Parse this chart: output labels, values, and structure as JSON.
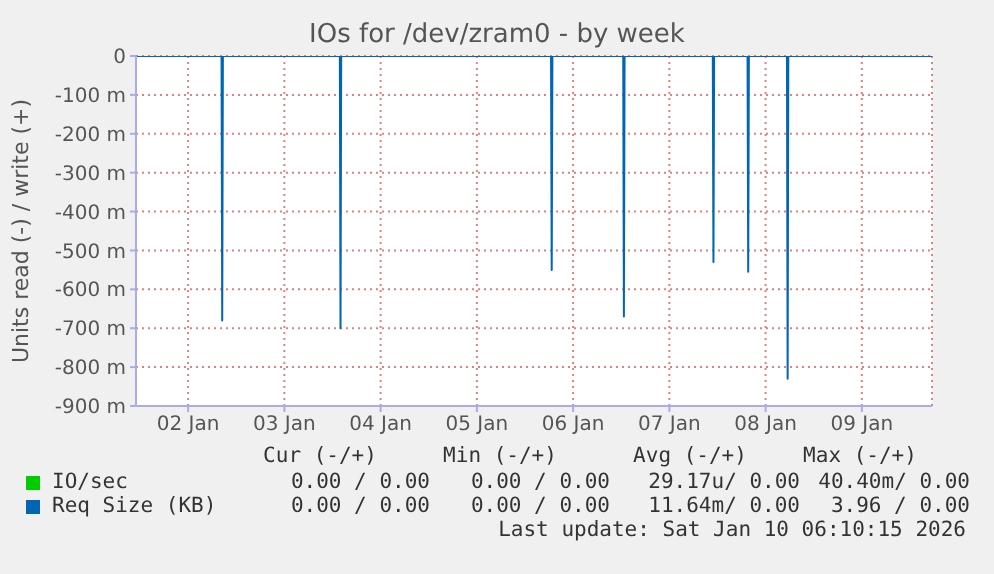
{
  "chart_data": {
    "type": "line",
    "title": "IOs for /dev/zram0 - by week",
    "ylabel": "Units read (-) / write (+)",
    "xlim": [
      "2026-01-01T11:00",
      "2026-01-09T17:30"
    ],
    "xticks": [
      {
        "value": "2026-01-02",
        "label": "02 Jan"
      },
      {
        "value": "2026-01-03",
        "label": "03 Jan"
      },
      {
        "value": "2026-01-04",
        "label": "04 Jan"
      },
      {
        "value": "2026-01-05",
        "label": "05 Jan"
      },
      {
        "value": "2026-01-06",
        "label": "06 Jan"
      },
      {
        "value": "2026-01-07",
        "label": "07 Jan"
      },
      {
        "value": "2026-01-08",
        "label": "08 Jan"
      },
      {
        "value": "2026-01-09",
        "label": "09 Jan"
      }
    ],
    "ylim": [
      -900,
      0
    ],
    "yticks": [
      {
        "value": -900,
        "label": "-900 m"
      },
      {
        "value": -800,
        "label": "-800 m"
      },
      {
        "value": -700,
        "label": "-700 m"
      },
      {
        "value": -600,
        "label": "-600 m"
      },
      {
        "value": -500,
        "label": "-500 m"
      },
      {
        "value": -400,
        "label": "-400 m"
      },
      {
        "value": -300,
        "label": "-300 m"
      },
      {
        "value": -200,
        "label": "-200 m"
      },
      {
        "value": -100,
        "label": "-100 m"
      },
      0
    ],
    "grid": true,
    "legend": "bottom",
    "marker": "none",
    "series": [
      {
        "name": "IO/sec",
        "color": "#00cc00"
      },
      {
        "name": "Req Size (KB)",
        "color": "#0066b3",
        "x": [
          "2026-01-01T11:00",
          "2026-01-02T08:20",
          "2026-01-02T08:30",
          "2026-01-02T08:40",
          "2026-01-03T13:50",
          "2026-01-03T14:00",
          "2026-01-03T14:10",
          "2026-01-05T18:30",
          "2026-01-05T18:40",
          "2026-01-05T18:50",
          "2026-01-06T12:30",
          "2026-01-06T12:40",
          "2026-01-06T12:50",
          "2026-01-07T10:50",
          "2026-01-07T11:00",
          "2026-01-07T11:10",
          "2026-01-07T19:30",
          "2026-01-07T19:40",
          "2026-01-07T19:50",
          "2026-01-08T05:20",
          "2026-01-08T05:30",
          "2026-01-08T05:40",
          "2026-01-09T17:30"
        ],
        "values": [
          0,
          0,
          -680,
          0,
          0,
          -700,
          0,
          0,
          -550,
          0,
          0,
          -670,
          0,
          0,
          -530,
          0,
          0,
          -555,
          0,
          0,
          -830,
          0,
          0
        ]
      }
    ],
    "annotations": [
      "Cur (-/+)",
      "Min (-/+)",
      "Avg (-/+)",
      "Max (-/+)",
      "0.00 / 0.00",
      "0.00 / 0.00",
      "29.17u/ 0.00",
      "40.40m/ 0.00",
      "0.00 / 0.00",
      "0.00 / 0.00",
      "11.64m/ 0.00",
      "3.96 / 0.00",
      "Last update: Sat Jan 10 06:10:15 2026"
    ]
  }
}
